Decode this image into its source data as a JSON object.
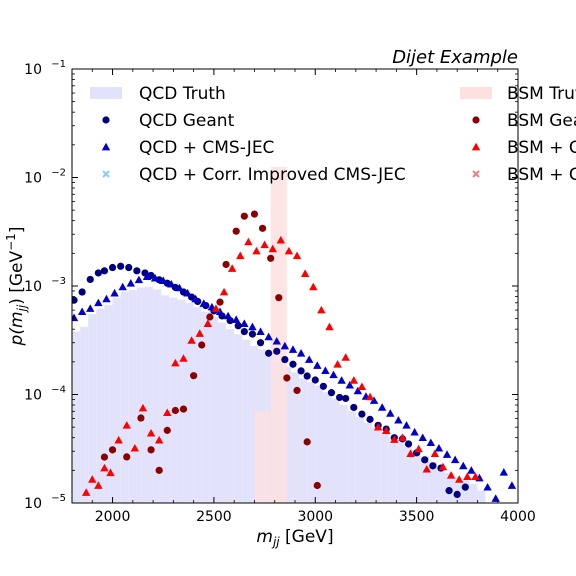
{
  "chart_data": {
    "type": "scatter",
    "title": "Dijet Example",
    "xlabel_var": "m",
    "xlabel_sub": "jj",
    "xlabel_unit": " [GeV]",
    "ylabel_pre": "p(",
    "ylabel_var": "m",
    "ylabel_sub": "jj",
    "ylabel_mid": ") [GeV",
    "ylabel_sup": "−1",
    "ylabel_post": "]",
    "xlim": [
      1800,
      4000
    ],
    "ylim": [
      1e-05,
      0.1
    ],
    "yscale": "log",
    "grid": false,
    "legend_placement": "top (two columns, right column clipped at figure edge)",
    "x_ticks": [
      "2000",
      "2500",
      "3000",
      "3500",
      "4000"
    ],
    "x_tick_values": [
      2000,
      2500,
      3000,
      3500,
      4000
    ],
    "y_ticks": [
      {
        "base": "10",
        "exp": "−5",
        "value": 1e-05
      },
      {
        "base": "10",
        "exp": "−4",
        "value": 0.0001
      },
      {
        "base": "10",
        "exp": "−3",
        "value": 0.001
      },
      {
        "base": "10",
        "exp": "−2",
        "value": 0.01
      },
      {
        "base": "10",
        "exp": "−1",
        "value": 0.1
      }
    ],
    "legend": [
      {
        "label": "QCD Truth",
        "marker": "patch",
        "color": "#e2e2fb"
      },
      {
        "label": "QCD Geant",
        "marker": "circle",
        "color": "#000080"
      },
      {
        "label": "QCD + CMS-JEC",
        "marker": "triangle",
        "color": "#0000cd"
      },
      {
        "label": "QCD + Corr. Improved CMS-JEC",
        "marker": "x",
        "color": "#87cefa"
      },
      {
        "label": "BSM Truth",
        "marker": "patch",
        "color": "#fde0e0"
      },
      {
        "label": "BSM Geant",
        "marker": "circle",
        "color": "#8b0000"
      },
      {
        "label": "BSM + CMS-JEC",
        "marker": "triangle",
        "color": "#ff0000"
      },
      {
        "label": "BSM + Corr. Improved CMS-JEC",
        "marker": "x",
        "color": "#f08080"
      }
    ],
    "series": [
      {
        "name": "QCD Truth",
        "kind": "hist",
        "color": "#e2e2fb",
        "edges": [
          1800,
          1840,
          1880,
          1920,
          1960,
          2000,
          2040,
          2080,
          2120,
          2160,
          2200,
          2240,
          2280,
          2320,
          2360,
          2400,
          2440,
          2480,
          2520,
          2560,
          2600,
          2640,
          2680,
          2720,
          2760,
          2800,
          2840,
          2880,
          2920,
          2960,
          3000,
          3040,
          3080,
          3120,
          3160,
          3200,
          3240,
          3280,
          3320,
          3360,
          3400,
          3440,
          3480,
          3520,
          3560,
          3600,
          3640,
          3680,
          3720,
          3760,
          3800,
          3840
        ],
        "values": [
          0.00038,
          0.00042,
          0.00055,
          0.00062,
          0.00067,
          0.00078,
          0.00088,
          0.00092,
          0.00097,
          0.00098,
          0.00093,
          0.00082,
          0.00078,
          0.00075,
          0.0007,
          0.00064,
          0.00058,
          0.00052,
          0.00046,
          0.0004,
          0.00036,
          0.00032,
          0.00028,
          0.00026,
          0.00023,
          0.0002,
          0.00018,
          0.00016,
          0.00014,
          0.00013,
          0.00012,
          0.000105,
          9.2e-05,
          8e-05,
          7e-05,
          6.2e-05,
          5.5e-05,
          5e-05,
          4.5e-05,
          4e-05,
          3.6e-05,
          3.3e-05,
          3e-05,
          2.7e-05,
          2.4e-05,
          2.1e-05,
          1.9e-05,
          1.7e-05,
          1.6e-05,
          1.5e-05,
          1.3e-05
        ]
      },
      {
        "name": "BSM Truth",
        "kind": "hist",
        "color": "#fde0e0",
        "edges": [
          2700,
          2780,
          2860
        ],
        "values": [
          7e-05,
          0.0125
        ]
      },
      {
        "name": "QCD Geant",
        "kind": "circle",
        "color": "#000080",
        "x": [
          1810,
          1850,
          1890,
          1930,
          1960,
          2000,
          2040,
          2080,
          2120,
          2160,
          2190,
          2230,
          2270,
          2310,
          2350,
          2390,
          2420,
          2460,
          2500,
          2540,
          2580,
          2620,
          2650,
          2690,
          2730,
          2770,
          2810,
          2850,
          2890,
          2930,
          2960,
          3000,
          3040,
          3080,
          3120,
          3150,
          3190,
          3230,
          3270,
          3310,
          3350,
          3390,
          3430,
          3460,
          3500,
          3540,
          3580,
          3620,
          3660,
          3700,
          3740
        ],
        "y": [
          0.00074,
          0.00088,
          0.00115,
          0.00132,
          0.00138,
          0.00148,
          0.00152,
          0.00148,
          0.00138,
          0.00132,
          0.00125,
          0.00114,
          0.00106,
          0.00097,
          0.00088,
          0.00079,
          0.00072,
          0.00066,
          0.00059,
          0.00053,
          0.00048,
          0.00043,
          0.00038,
          0.00036,
          0.0003,
          0.00024,
          0.00025,
          0.00021,
          0.00019,
          0.000165,
          0.000148,
          0.000136,
          0.000119,
          0.000104,
          9.4e-05,
          9.2e-05,
          7.6e-05,
          6.6e-05,
          5.9e-05,
          5.2e-05,
          4.8e-05,
          4e-05,
          3.9e-05,
          3.5e-05,
          2.9e-05,
          2.5e-05,
          2.2e-05,
          2.1e-05,
          1.3e-05,
          1.2e-05,
          1.4e-05
        ]
      },
      {
        "name": "QCD + CMS-JEC",
        "kind": "triangle",
        "color": "#0000cd",
        "x": [
          1810,
          1850,
          1890,
          1930,
          1970,
          2010,
          2050,
          2090,
          2130,
          2170,
          2210,
          2250,
          2290,
          2330,
          2370,
          2410,
          2450,
          2490,
          2530,
          2570,
          2610,
          2650,
          2690,
          2730,
          2770,
          2810,
          2850,
          2890,
          2930,
          2970,
          3010,
          3050,
          3090,
          3130,
          3170,
          3210,
          3250,
          3290,
          3330,
          3370,
          3410,
          3450,
          3490,
          3530,
          3570,
          3610,
          3650,
          3690,
          3730,
          3770,
          3810,
          3850,
          3890,
          3930,
          3970
        ],
        "y": [
          0.00051,
          0.00058,
          0.00062,
          0.0007,
          0.00076,
          0.00086,
          0.00098,
          0.00106,
          0.00114,
          0.00122,
          0.00118,
          0.00112,
          0.00104,
          0.00096,
          0.00086,
          0.00076,
          0.00069,
          0.00064,
          0.00058,
          0.00053,
          0.00049,
          0.00045,
          0.00042,
          0.00038,
          0.00034,
          0.00031,
          0.00028,
          0.00026,
          0.00024,
          0.00021,
          0.000185,
          0.000166,
          0.000152,
          0.000135,
          0.000122,
          0.000108,
          9.6e-05,
          8.8e-05,
          7.6e-05,
          6.7e-05,
          5.8e-05,
          5.2e-05,
          4.5e-05,
          4e-05,
          3.6e-05,
          3.2e-05,
          2.8e-05,
          2.5e-05,
          2.2e-05,
          2e-05,
          1.7e-05,
          1.4e-05,
          1.1e-05,
          1.92e-05,
          1.45e-05
        ]
      },
      {
        "name": "BSM Geant",
        "kind": "circle",
        "color": "#8b0000",
        "x": [
          1960,
          2000,
          2070,
          2140,
          2190,
          2230,
          2270,
          2310,
          2350,
          2400,
          2440,
          2480,
          2530,
          2560,
          2610,
          2650,
          2700,
          2740,
          2780,
          2820,
          2860,
          2910,
          2960,
          3010
        ],
        "y": [
          2.65e-05,
          3.09e-05,
          2.66e-05,
          6.07e-05,
          3.09e-05,
          2e-05,
          4.67e-05,
          7.12e-05,
          7.34e-05,
          0.000149,
          0.000286,
          0.000518,
          0.00071,
          0.00158,
          0.0032,
          0.0044,
          0.0046,
          0.0034,
          0.0018,
          0.00078,
          0.000142,
          0.000109,
          3.66e-05,
          1.45e-05
        ]
      },
      {
        "name": "BSM + CMS-JEC",
        "kind": "triangle",
        "color": "#ff0000",
        "x": [
          1870,
          1900,
          1930,
          1960,
          1990,
          2030,
          2070,
          2110,
          2150,
          2190,
          2230,
          2270,
          2310,
          2350,
          2390,
          2430,
          2470,
          2510,
          2550,
          2590,
          2630,
          2670,
          2710,
          2750,
          2790,
          2830,
          2870,
          2910,
          2950,
          2990,
          3030,
          3070,
          3110,
          3150,
          3190,
          3230,
          3270,
          3310,
          3350,
          3390,
          3430,
          3470,
          3510,
          3550,
          3590,
          3630,
          3670,
          3710,
          3750,
          3790
        ],
        "y": [
          1.25e-05,
          1.65e-05,
          1.45e-05,
          2.1e-05,
          1.9e-05,
          3.8e-05,
          5.2e-05,
          3.2e-05,
          7.5e-05,
          4.4e-05,
          3.8e-05,
          6.8e-05,
          0.000195,
          0.000215,
          0.000315,
          0.000365,
          0.00045,
          0.00062,
          0.00088,
          0.00145,
          0.0019,
          0.00255,
          0.0021,
          0.0024,
          0.0022,
          0.00265,
          0.0021,
          0.0019,
          0.0013,
          0.00098,
          0.0006,
          0.00042,
          0.00019,
          0.00022,
          0.000135,
          0.000118,
          9.5e-05,
          5e-05,
          4.65e-05,
          3.85e-05,
          4e-05,
          2.85e-05,
          3.15e-05,
          2.05e-05,
          2.85e-05,
          2.15e-05,
          1.8e-05,
          1.65e-05,
          1.75e-05,
          1.75e-05
        ]
      }
    ]
  }
}
